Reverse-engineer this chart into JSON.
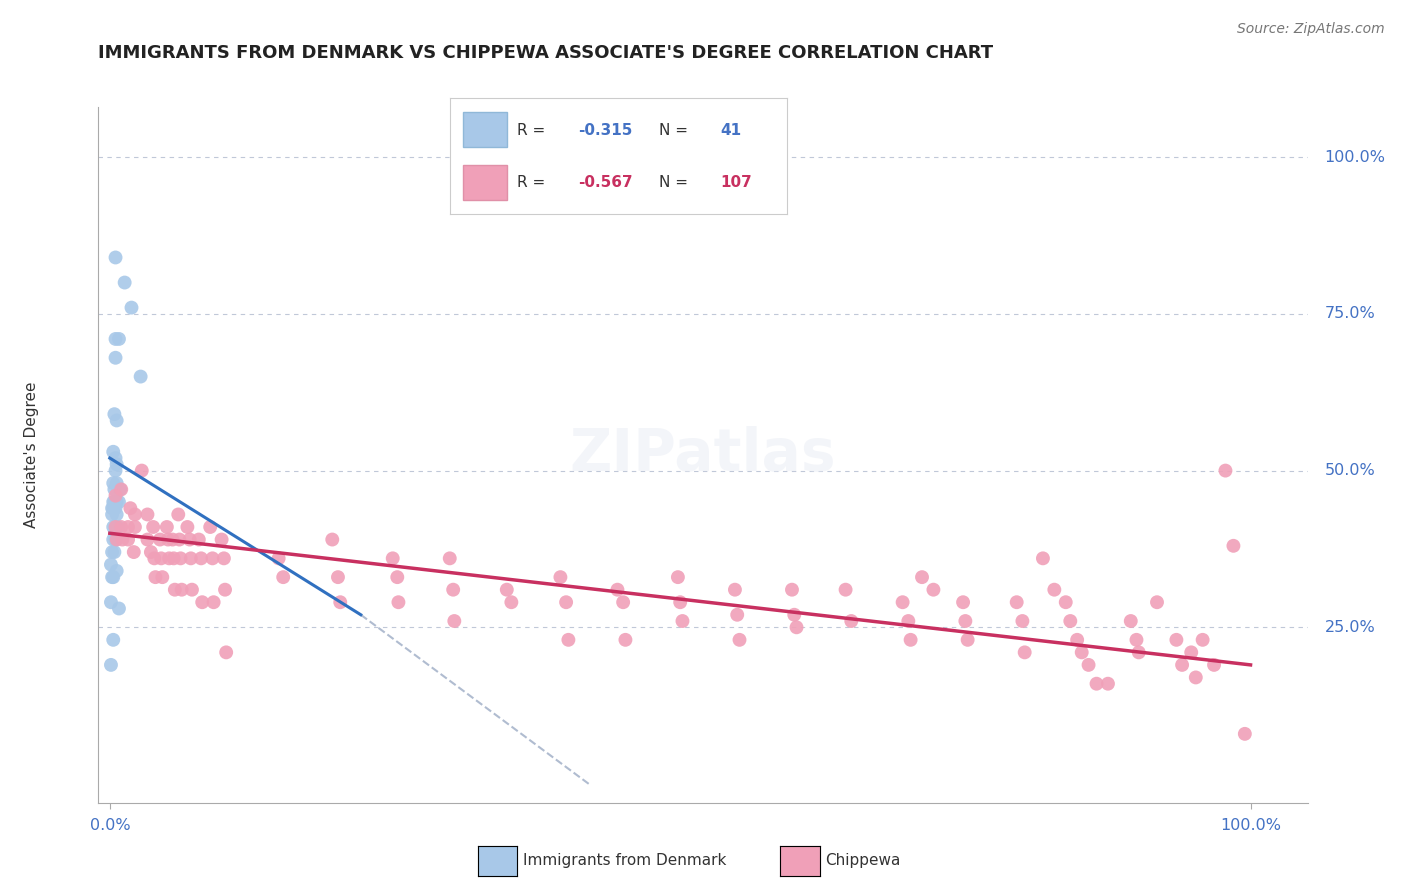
{
  "title": "IMMIGRANTS FROM DENMARK VS CHIPPEWA ASSOCIATE'S DEGREE CORRELATION CHART",
  "source": "Source: ZipAtlas.com",
  "ylabel": "Associate's Degree",
  "ytick_labels": [
    "100.0%",
    "75.0%",
    "50.0%",
    "25.0%"
  ],
  "ytick_values": [
    1.0,
    0.75,
    0.5,
    0.25
  ],
  "xlim": [
    0.0,
    1.0
  ],
  "ylim": [
    0.0,
    1.08
  ],
  "blue_color": "#a8c8e8",
  "pink_color": "#f0a0b8",
  "trendline_blue": "#3070c0",
  "trendline_pink": "#c83060",
  "trendline_dashed_color": "#b0bcd0",
  "background_color": "#ffffff",
  "grid_color": "#c0c8d8",
  "blue_trend_x0": 0.0,
  "blue_trend_y0": 0.52,
  "blue_trend_x1": 0.22,
  "blue_trend_y1": 0.27,
  "blue_trend_dash_x1": 0.42,
  "blue_trend_dash_y1": 0.0,
  "pink_trend_x0": 0.0,
  "pink_trend_y0": 0.4,
  "pink_trend_x1": 1.0,
  "pink_trend_y1": 0.19,
  "blue_scatter": [
    [
      0.005,
      0.84
    ],
    [
      0.013,
      0.8
    ],
    [
      0.019,
      0.76
    ],
    [
      0.005,
      0.71
    ],
    [
      0.008,
      0.71
    ],
    [
      0.005,
      0.68
    ],
    [
      0.027,
      0.65
    ],
    [
      0.004,
      0.59
    ],
    [
      0.006,
      0.58
    ],
    [
      0.003,
      0.53
    ],
    [
      0.005,
      0.52
    ],
    [
      0.006,
      0.51
    ],
    [
      0.005,
      0.5
    ],
    [
      0.003,
      0.48
    ],
    [
      0.006,
      0.48
    ],
    [
      0.004,
      0.47
    ],
    [
      0.009,
      0.47
    ],
    [
      0.003,
      0.45
    ],
    [
      0.004,
      0.45
    ],
    [
      0.006,
      0.45
    ],
    [
      0.008,
      0.45
    ],
    [
      0.002,
      0.44
    ],
    [
      0.003,
      0.44
    ],
    [
      0.005,
      0.44
    ],
    [
      0.002,
      0.43
    ],
    [
      0.006,
      0.43
    ],
    [
      0.003,
      0.41
    ],
    [
      0.005,
      0.41
    ],
    [
      0.007,
      0.41
    ],
    [
      0.003,
      0.39
    ],
    [
      0.005,
      0.39
    ],
    [
      0.002,
      0.37
    ],
    [
      0.004,
      0.37
    ],
    [
      0.001,
      0.35
    ],
    [
      0.006,
      0.34
    ],
    [
      0.002,
      0.33
    ],
    [
      0.003,
      0.33
    ],
    [
      0.001,
      0.29
    ],
    [
      0.008,
      0.28
    ],
    [
      0.003,
      0.23
    ],
    [
      0.001,
      0.19
    ]
  ],
  "pink_scatter": [
    [
      0.005,
      0.46
    ],
    [
      0.01,
      0.47
    ],
    [
      0.018,
      0.44
    ],
    [
      0.022,
      0.43
    ],
    [
      0.005,
      0.41
    ],
    [
      0.01,
      0.41
    ],
    [
      0.016,
      0.41
    ],
    [
      0.022,
      0.41
    ],
    [
      0.006,
      0.39
    ],
    [
      0.011,
      0.39
    ],
    [
      0.016,
      0.39
    ],
    [
      0.021,
      0.37
    ],
    [
      0.028,
      0.5
    ],
    [
      0.033,
      0.43
    ],
    [
      0.033,
      0.39
    ],
    [
      0.036,
      0.37
    ],
    [
      0.038,
      0.41
    ],
    [
      0.039,
      0.36
    ],
    [
      0.04,
      0.33
    ],
    [
      0.044,
      0.39
    ],
    [
      0.045,
      0.36
    ],
    [
      0.046,
      0.33
    ],
    [
      0.05,
      0.41
    ],
    [
      0.051,
      0.39
    ],
    [
      0.052,
      0.36
    ],
    [
      0.055,
      0.39
    ],
    [
      0.056,
      0.36
    ],
    [
      0.057,
      0.31
    ],
    [
      0.06,
      0.43
    ],
    [
      0.061,
      0.39
    ],
    [
      0.062,
      0.36
    ],
    [
      0.063,
      0.31
    ],
    [
      0.068,
      0.41
    ],
    [
      0.07,
      0.39
    ],
    [
      0.071,
      0.36
    ],
    [
      0.072,
      0.31
    ],
    [
      0.078,
      0.39
    ],
    [
      0.08,
      0.36
    ],
    [
      0.081,
      0.29
    ],
    [
      0.088,
      0.41
    ],
    [
      0.09,
      0.36
    ],
    [
      0.091,
      0.29
    ],
    [
      0.098,
      0.39
    ],
    [
      0.1,
      0.36
    ],
    [
      0.101,
      0.31
    ],
    [
      0.102,
      0.21
    ],
    [
      0.148,
      0.36
    ],
    [
      0.152,
      0.33
    ],
    [
      0.195,
      0.39
    ],
    [
      0.2,
      0.33
    ],
    [
      0.202,
      0.29
    ],
    [
      0.248,
      0.36
    ],
    [
      0.252,
      0.33
    ],
    [
      0.253,
      0.29
    ],
    [
      0.298,
      0.36
    ],
    [
      0.301,
      0.31
    ],
    [
      0.302,
      0.26
    ],
    [
      0.348,
      0.31
    ],
    [
      0.352,
      0.29
    ],
    [
      0.395,
      0.33
    ],
    [
      0.4,
      0.29
    ],
    [
      0.402,
      0.23
    ],
    [
      0.445,
      0.31
    ],
    [
      0.45,
      0.29
    ],
    [
      0.452,
      0.23
    ],
    [
      0.498,
      0.33
    ],
    [
      0.5,
      0.29
    ],
    [
      0.502,
      0.26
    ],
    [
      0.548,
      0.31
    ],
    [
      0.55,
      0.27
    ],
    [
      0.552,
      0.23
    ],
    [
      0.598,
      0.31
    ],
    [
      0.6,
      0.27
    ],
    [
      0.602,
      0.25
    ],
    [
      0.645,
      0.31
    ],
    [
      0.65,
      0.26
    ],
    [
      0.695,
      0.29
    ],
    [
      0.7,
      0.26
    ],
    [
      0.702,
      0.23
    ],
    [
      0.712,
      0.33
    ],
    [
      0.722,
      0.31
    ],
    [
      0.748,
      0.29
    ],
    [
      0.75,
      0.26
    ],
    [
      0.752,
      0.23
    ],
    [
      0.795,
      0.29
    ],
    [
      0.8,
      0.26
    ],
    [
      0.802,
      0.21
    ],
    [
      0.818,
      0.36
    ],
    [
      0.828,
      0.31
    ],
    [
      0.838,
      0.29
    ],
    [
      0.842,
      0.26
    ],
    [
      0.848,
      0.23
    ],
    [
      0.852,
      0.21
    ],
    [
      0.858,
      0.19
    ],
    [
      0.865,
      0.16
    ],
    [
      0.875,
      0.16
    ],
    [
      0.895,
      0.26
    ],
    [
      0.9,
      0.23
    ],
    [
      0.902,
      0.21
    ],
    [
      0.918,
      0.29
    ],
    [
      0.935,
      0.23
    ],
    [
      0.94,
      0.19
    ],
    [
      0.948,
      0.21
    ],
    [
      0.952,
      0.17
    ],
    [
      0.958,
      0.23
    ],
    [
      0.968,
      0.19
    ],
    [
      0.978,
      0.5
    ],
    [
      0.985,
      0.38
    ],
    [
      0.995,
      0.08
    ]
  ]
}
